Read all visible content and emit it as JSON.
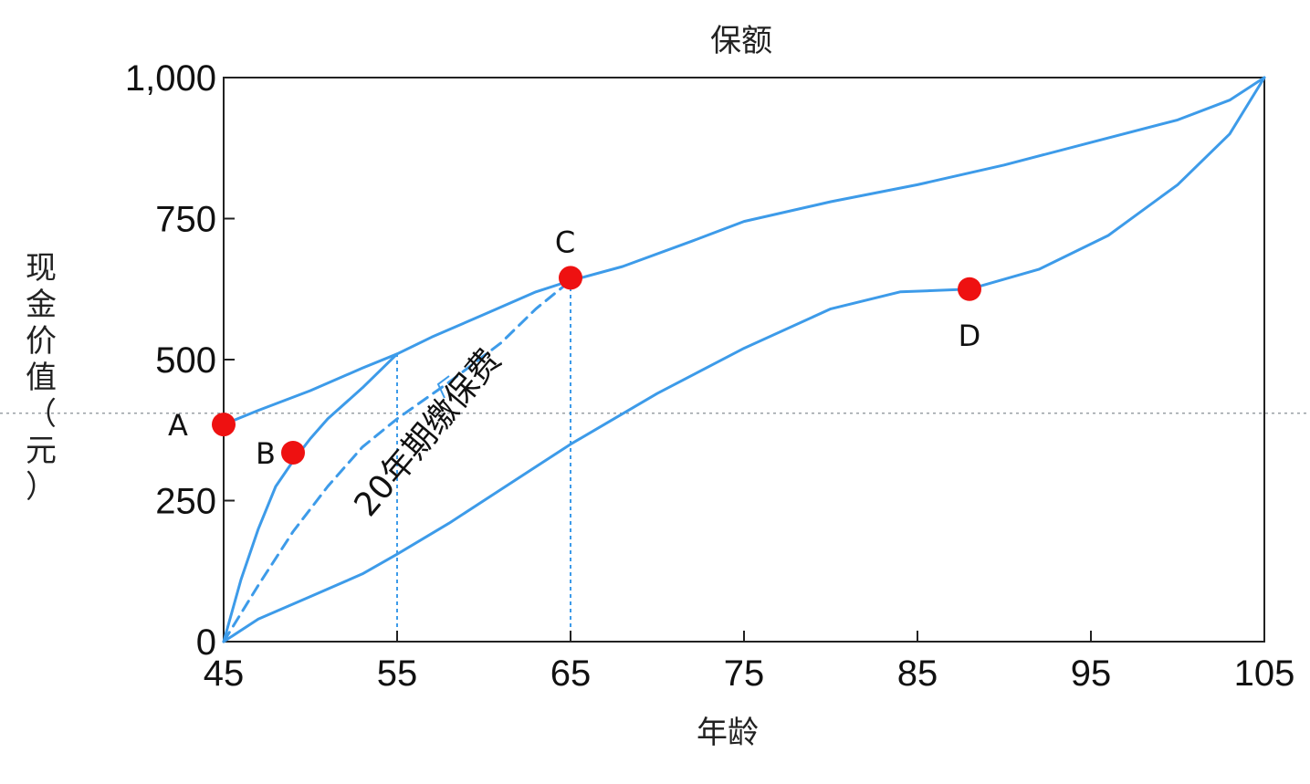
{
  "chart_data": {
    "type": "line",
    "title": "保额",
    "xlabel": "年龄",
    "ylabel": "现金价值（元）",
    "xlim": [
      45,
      105
    ],
    "ylim": [
      0,
      1000
    ],
    "x_ticks": [
      45,
      55,
      65,
      75,
      85,
      95,
      105
    ],
    "y_ticks": [
      0,
      250,
      500,
      750,
      1000
    ],
    "y_tick_labels": [
      "0",
      "250",
      "500",
      "750",
      "1,000"
    ],
    "series": [
      {
        "style": "solid",
        "x": [
          45,
          47,
          50,
          53,
          55,
          57,
          60,
          63,
          65,
          68,
          72,
          75,
          80,
          85,
          90,
          95,
          100,
          103,
          105
        ],
        "y": [
          385,
          410,
          445,
          485,
          510,
          540,
          580,
          620,
          640,
          665,
          710,
          745,
          780,
          810,
          845,
          885,
          925,
          960,
          1000
        ]
      },
      {
        "style": "solid",
        "x": [
          45,
          46,
          47,
          48,
          49,
          50,
          51,
          53,
          55
        ],
        "y": [
          0,
          110,
          200,
          275,
          320,
          360,
          395,
          450,
          510
        ]
      },
      {
        "style": "dashed",
        "x": [
          45,
          47,
          49,
          51,
          53,
          55,
          58,
          61,
          63,
          65
        ],
        "y": [
          0,
          100,
          195,
          275,
          345,
          395,
          460,
          530,
          590,
          640
        ]
      },
      {
        "style": "solid",
        "x": [
          45,
          47,
          50,
          53,
          55,
          58,
          61,
          65,
          70,
          75,
          80,
          84,
          88,
          92,
          96,
          100,
          103,
          105
        ],
        "y": [
          0,
          40,
          80,
          120,
          155,
          210,
          270,
          350,
          440,
          520,
          590,
          620,
          625,
          660,
          720,
          810,
          900,
          1000
        ]
      }
    ],
    "points": [
      {
        "label": "A",
        "x": 45,
        "y": 385
      },
      {
        "label": "B",
        "x": 49,
        "y": 335
      },
      {
        "label": "C",
        "x": 65,
        "y": 645
      },
      {
        "label": "D",
        "x": 88,
        "y": 625
      }
    ],
    "vlines": [
      55,
      65
    ],
    "hline": 405,
    "annotation": "20年期缴保费",
    "line_color": "#3d9be9",
    "point_color": "#ee1111"
  }
}
